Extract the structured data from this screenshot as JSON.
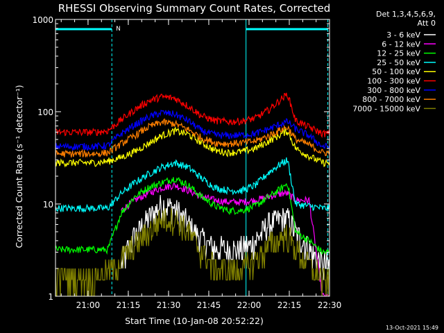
{
  "chart_data": {
    "type": "line",
    "title": "RHESSI Observing Summary Count Rates, Corrected",
    "xlabel": "Start Time (10-Jan-08 20:52:22)",
    "ylabel": "Corrected Count Rate (s⁻¹ detector⁻¹)",
    "y_scale": "log",
    "ylim": [
      1,
      1000
    ],
    "xlim_minutes": [
      0,
      97
    ],
    "x_ticks": [
      {
        "label": "21:00",
        "minutes": 7.63
      },
      {
        "label": "21:15",
        "minutes": 22.63
      },
      {
        "label": "21:30",
        "minutes": 37.63
      },
      {
        "label": "21:45",
        "minutes": 52.63
      },
      {
        "label": "22:00",
        "minutes": 67.63
      },
      {
        "label": "22:15",
        "minutes": 82.63
      },
      {
        "label": "22:30",
        "minutes": 97.63
      }
    ],
    "y_ticks": [
      {
        "label": "1",
        "value": 1
      },
      {
        "label": "10",
        "value": 10
      },
      {
        "label": "100",
        "value": 100
      },
      {
        "label": "1000",
        "value": 1000
      }
    ],
    "legend_header": [
      "Det 1,3,4,5,6,9,",
      "Att 0"
    ],
    "legend_position": "top-right",
    "annotations": [
      {
        "text": "N",
        "minutes": 17
      }
    ],
    "night_periods": [
      {
        "start_min": -5,
        "end_min": 16.5
      },
      {
        "start_min": 66.5,
        "end_min": 97
      }
    ],
    "x": [
      0,
      5,
      10,
      15,
      20,
      25,
      30,
      35,
      40,
      45,
      50,
      55,
      60,
      65,
      70,
      75,
      80,
      82,
      85,
      90,
      95
    ],
    "series": [
      {
        "name": "3 - 6 keV",
        "color": "#ffffff",
        "kind": "stepnoise",
        "values": [
          null,
          null,
          null,
          null,
          null,
          null,
          null,
          null,
          null,
          null,
          null,
          null,
          null,
          null,
          null,
          null,
          null,
          null,
          null,
          null,
          null
        ]
      },
      {
        "name": "6 - 12 keV",
        "color": "#ff00ff",
        "values": [
          null,
          null,
          null,
          null,
          8.5,
          11,
          13,
          15,
          16,
          14,
          12,
          11,
          10.5,
          10.5,
          11,
          12,
          13,
          13,
          11,
          11,
          1
        ]
      },
      {
        "name": "12 - 25 keV",
        "color": "#00ff00",
        "values": [
          3.2,
          3.2,
          3.2,
          3.2,
          8,
          12,
          15,
          17,
          19,
          16,
          12,
          9.5,
          8.5,
          8.5,
          9.5,
          12,
          15,
          17,
          5,
          4,
          3
        ]
      },
      {
        "name": "25 - 50 keV",
        "color": "#00ffff",
        "values": [
          9,
          9,
          9,
          9,
          13,
          17,
          21,
          25,
          28,
          25,
          19,
          15,
          14,
          14,
          16,
          22,
          28,
          30,
          10,
          9.5,
          9
        ]
      },
      {
        "name": "50 - 100 keV",
        "color": "#ffff00",
        "values": [
          28,
          28,
          28,
          29,
          32,
          37,
          45,
          55,
          62,
          57,
          46,
          38,
          36,
          37,
          40,
          48,
          58,
          62,
          40,
          33,
          28
        ]
      },
      {
        "name": "100 - 300 keV",
        "color": "#ff0000",
        "values": [
          60,
          60,
          60,
          62,
          82,
          105,
          130,
          145,
          140,
          115,
          90,
          80,
          78,
          79,
          85,
          105,
          140,
          155,
          80,
          68,
          58
        ]
      },
      {
        "name": "300 - 800 keV",
        "color": "#0000ff",
        "values": [
          42,
          42,
          42,
          43,
          58,
          72,
          87,
          98,
          94,
          80,
          62,
          56,
          55,
          56,
          58,
          65,
          75,
          78,
          65,
          55,
          42
        ]
      },
      {
        "name": "800 - 7000 keV",
        "color": "#ff7f00",
        "values": [
          35,
          35,
          35,
          36,
          45,
          55,
          68,
          77,
          74,
          64,
          52,
          46,
          45,
          46,
          48,
          55,
          65,
          68,
          50,
          44,
          36
        ]
      },
      {
        "name": "7000 - 15000 keV",
        "color": "#7f7f00",
        "kind": "stepnoise",
        "values": [
          null,
          null,
          null,
          null,
          null,
          null,
          null,
          null,
          null,
          null,
          null,
          null,
          null,
          null,
          null,
          null,
          null,
          null,
          null,
          null,
          null
        ]
      }
    ]
  },
  "footer_timestamp": "13-Oct-2021 15:49"
}
